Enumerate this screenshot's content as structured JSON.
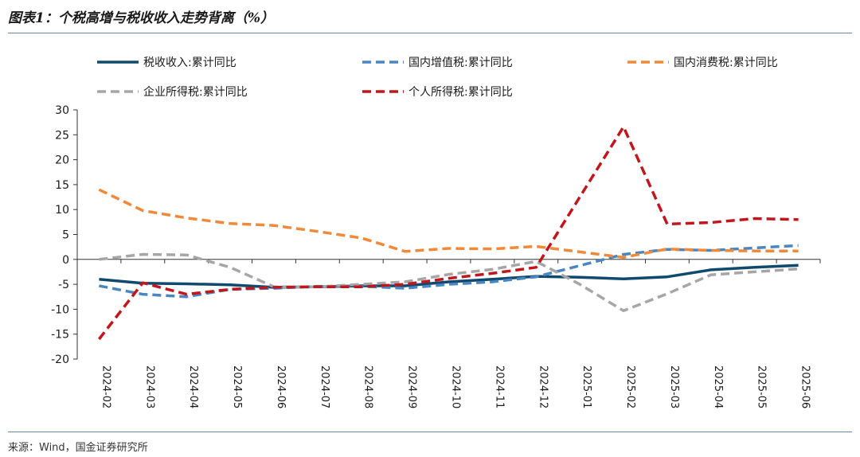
{
  "title": "图表1：个税高增与税收收入走势背离（%）",
  "source": "来源：Wind，国金证券研究所",
  "chart_data": {
    "type": "line",
    "categories": [
      "2024-02",
      "2024-03",
      "2024-04",
      "2024-05",
      "2024-06",
      "2024-07",
      "2024-08",
      "2024-09",
      "2024-10",
      "2024-11",
      "2024-12",
      "2025-01",
      "2025-02",
      "2025-03",
      "2025-04",
      "2025-05",
      "2025-06"
    ],
    "ylim": [
      -20,
      30
    ],
    "yticks": [
      -20,
      -15,
      -10,
      -5,
      0,
      5,
      10,
      15,
      20,
      25,
      30
    ],
    "grid": false,
    "legend_position": "top",
    "series": [
      {
        "name": "税收收入:累计同比",
        "color": "#0f4a6e",
        "style": "solid",
        "values": [
          -4.0,
          -4.8,
          -4.9,
          -5.1,
          -5.6,
          -5.5,
          -5.3,
          -5.3,
          -4.5,
          -4.0,
          -3.4,
          -3.6,
          -3.9,
          -3.5,
          -2.1,
          -1.6,
          -1.2
        ]
      },
      {
        "name": "国内增值税:累计同比",
        "color": "#4a86c0",
        "style": "dashed",
        "values": [
          -5.3,
          -7.0,
          -7.5,
          -6.0,
          -5.8,
          -5.4,
          -5.4,
          -5.8,
          -5.0,
          -4.5,
          -3.5,
          null,
          1.0,
          2.0,
          1.8,
          2.3,
          2.8
        ]
      },
      {
        "name": "国内消费税:累计同比",
        "color": "#f0893a",
        "style": "dashed",
        "values": [
          14.0,
          9.8,
          8.3,
          7.2,
          6.8,
          5.6,
          4.3,
          1.6,
          2.2,
          2.1,
          2.6,
          1.5,
          0.4,
          2.1,
          1.8,
          1.7,
          1.7
        ]
      },
      {
        "name": "企业所得税:累计同比",
        "color": "#a6a6a6",
        "style": "dashed",
        "values": [
          0.0,
          1.0,
          0.9,
          -1.6,
          -5.5,
          -5.5,
          -5.0,
          -4.5,
          -3.0,
          -2.0,
          -0.4,
          -5.0,
          -10.3,
          -6.9,
          -3.1,
          -2.5,
          -1.9
        ]
      },
      {
        "name": "个人所得税:累计同比",
        "color": "#c0161c",
        "style": "dashed",
        "values": [
          -16.0,
          -4.7,
          -7.0,
          -6.0,
          -5.6,
          -5.5,
          -5.5,
          -5.0,
          -3.8,
          -2.8,
          -1.6,
          12.5,
          26.6,
          7.1,
          7.4,
          8.2,
          8.0
        ]
      }
    ]
  }
}
